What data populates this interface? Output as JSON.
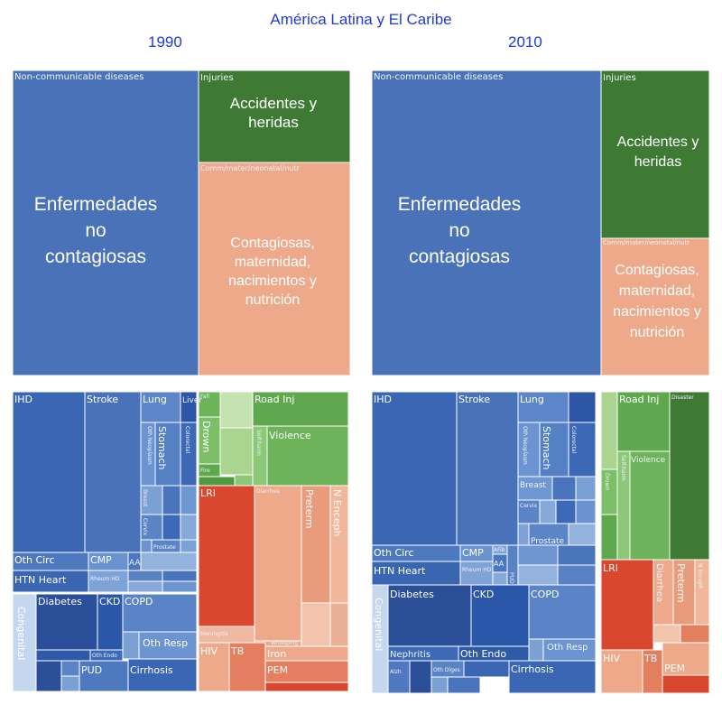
{
  "title": "América Latina y El Caribe",
  "years": [
    "1990",
    "2010"
  ],
  "colors": {
    "ncd": "#4a72b8",
    "ncd_dark": "#2c4f9a",
    "ncd_light": "#7aa0d4",
    "injury": "#3f7a34",
    "injury_light": "#6db35a",
    "injury_pale": "#a9d590",
    "comm": "#eda98a",
    "comm_dark": "#d9472e",
    "comm_mid": "#e37e5f",
    "text_accent": "#1f3ad6"
  },
  "chart_data": [
    {
      "type": "treemap",
      "year": "1990",
      "level": "category",
      "categories": [
        {
          "name": "Non-communicable diseases",
          "label": "Enfermedades no contagiosas",
          "share": 0.61
        },
        {
          "name": "Injuries",
          "label": "Accidentes y heridas",
          "share": 0.12
        },
        {
          "name": "Comm/mater/neonatal/nutr",
          "label": "Contagiosas, maternidad, nacimientos y nutrición",
          "share": 0.27
        }
      ]
    },
    {
      "type": "treemap",
      "year": "2010",
      "level": "category",
      "categories": [
        {
          "name": "Non-communicable diseases",
          "label": "Enfermedades no contagiosas",
          "share": 0.66
        },
        {
          "name": "Injuries",
          "label": "Accidentes y heridas",
          "share": 0.19
        },
        {
          "name": "Comm/mater/neonatal/nutr",
          "label": "Contagiosas, maternidad, nacimientos y nutrición",
          "share": 0.15
        }
      ]
    },
    {
      "type": "treemap",
      "year": "1990",
      "level": "cause",
      "labels": [
        "IHD",
        "Stroke",
        "Lung",
        "Liver",
        "Oth Neoplasm",
        "Stomach",
        "Colorectal",
        "Breast",
        "Cervix",
        "Prostate",
        "Oth Circ",
        "CMP",
        "AA",
        "HTN Heart",
        "Rheum HD",
        "Diabetes",
        "CKD",
        "COPD",
        "Oth Resp",
        "Oth Endo",
        "Cirrhosis",
        "PUD",
        "Congenital",
        "Fall",
        "Drown",
        "Fire",
        "Road Inj",
        "Self-harm",
        "Violence",
        "LRI",
        "Diarrhea",
        "Preterm",
        "N Enceph",
        "Meningitis",
        "Whooping",
        "HIV",
        "TB",
        "Iron",
        "PEM"
      ]
    },
    {
      "type": "treemap",
      "year": "2010",
      "level": "cause",
      "labels": [
        "IHD",
        "Stroke",
        "Lung",
        "Oth Neoplasm",
        "Stomach",
        "Colorectal",
        "Breast",
        "Cervix",
        "Prostate",
        "Oth Circ",
        "CMP",
        "AFib",
        "AA",
        "HTN Heart",
        "Rheum HD",
        "PUD",
        "Diabetes",
        "CKD",
        "COPD",
        "Nephritis",
        "Oth Endo",
        "Oth Resp",
        "Alzh",
        "Oth Dlges",
        "Cirrhosis",
        "Congenital",
        "Road Inj",
        "Disaster",
        "Violence",
        "Self-harm",
        "Drown",
        "LRI",
        "Diarrhea",
        "Preterm",
        "N Enceph",
        "HIV",
        "TB",
        "PEM"
      ]
    }
  ]
}
